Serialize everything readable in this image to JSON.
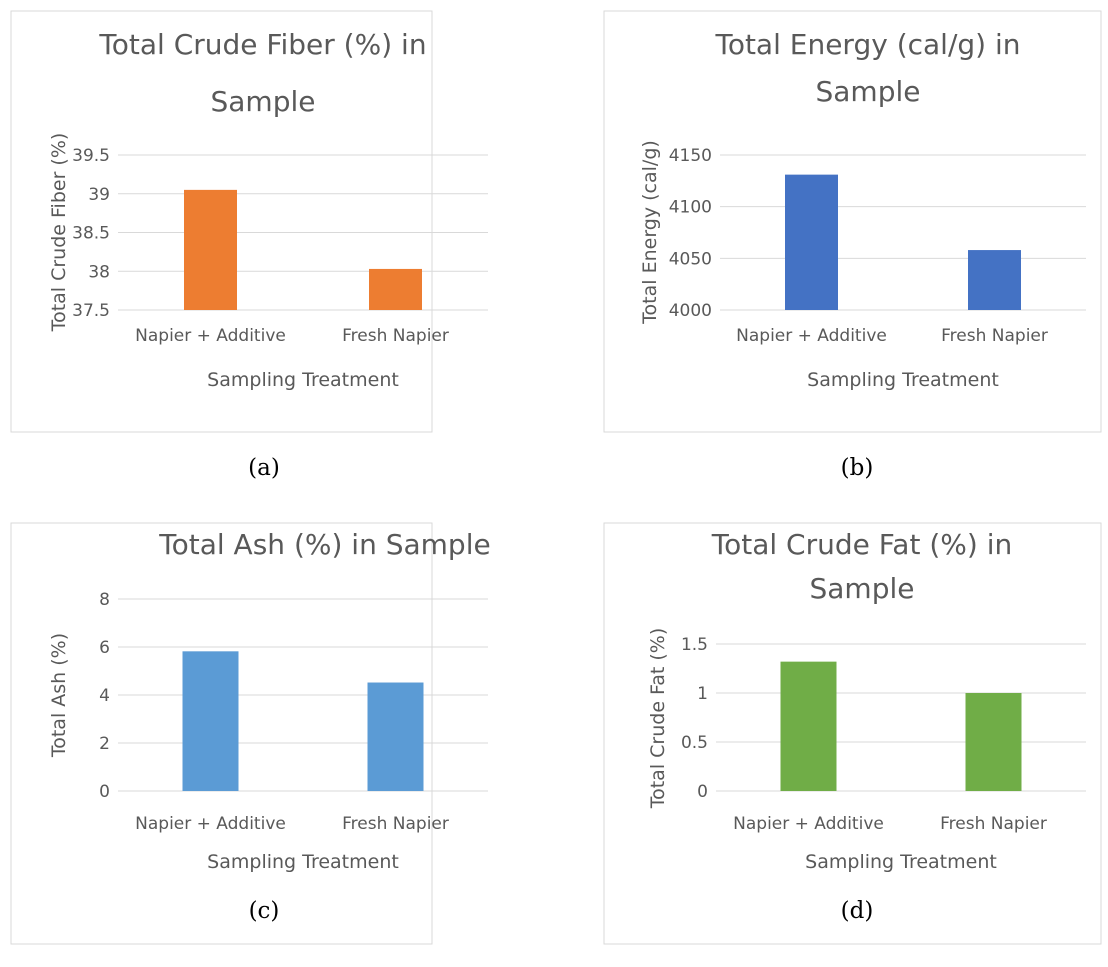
{
  "chart_data": [
    {
      "type": "bar",
      "title": "Total Crude Fiber (%) in Sample",
      "title_lines": [
        "Total Crude Fiber (%) in",
        "Sample"
      ],
      "xlabel": "Sampling Treatment",
      "ylabel": "Total Crude Fiber (%)",
      "categories": [
        "Napier + Additive",
        "Fresh Napier"
      ],
      "values": [
        39.05,
        38.03
      ],
      "ylim": [
        37.5,
        39.5
      ],
      "yticks": [
        "37.5",
        "38",
        "38.5",
        "39",
        "39.5"
      ],
      "bar_color": "#ed7d31",
      "grid": true,
      "caption": "(a)"
    },
    {
      "type": "bar",
      "title": "Total Energy (cal/g) in Sample",
      "title_lines": [
        "Total Energy (cal/g) in",
        "Sample"
      ],
      "xlabel": "Sampling Treatment",
      "ylabel": "Total Energy (cal/g)",
      "categories": [
        "Napier + Additive",
        "Fresh Napier"
      ],
      "values": [
        4131,
        4058
      ],
      "ylim": [
        4000,
        4150
      ],
      "yticks": [
        "4000",
        "4050",
        "4100",
        "4150"
      ],
      "bar_color": "#4472c4",
      "grid": true,
      "caption": "(b)"
    },
    {
      "type": "bar",
      "title": "Total Ash (%) in Sample",
      "title_lines": [
        "Total Ash (%) in Sample"
      ],
      "xlabel": "Sampling Treatment",
      "ylabel": "Total Ash (%)",
      "categories": [
        "Napier + Additive",
        "Fresh Napier"
      ],
      "values": [
        5.82,
        4.52
      ],
      "ylim": [
        0,
        8
      ],
      "yticks": [
        "0",
        "2",
        "4",
        "6",
        "8"
      ],
      "bar_color": "#5b9bd5",
      "grid": true,
      "caption": "(c)"
    },
    {
      "type": "bar",
      "title": "Total Crude Fat (%) in Sample",
      "title_lines": [
        "Total Crude Fat (%) in",
        "Sample"
      ],
      "xlabel": "Sampling Treatment",
      "ylabel": "Total Crude Fat (%)",
      "categories": [
        "Napier + Additive",
        "Fresh Napier"
      ],
      "values": [
        1.32,
        1.0
      ],
      "ylim": [
        0,
        1.5
      ],
      "yticks": [
        "0",
        "0.5",
        "1",
        "1.5"
      ],
      "bar_color": "#70ad47",
      "grid": true,
      "caption": "(d)"
    }
  ]
}
